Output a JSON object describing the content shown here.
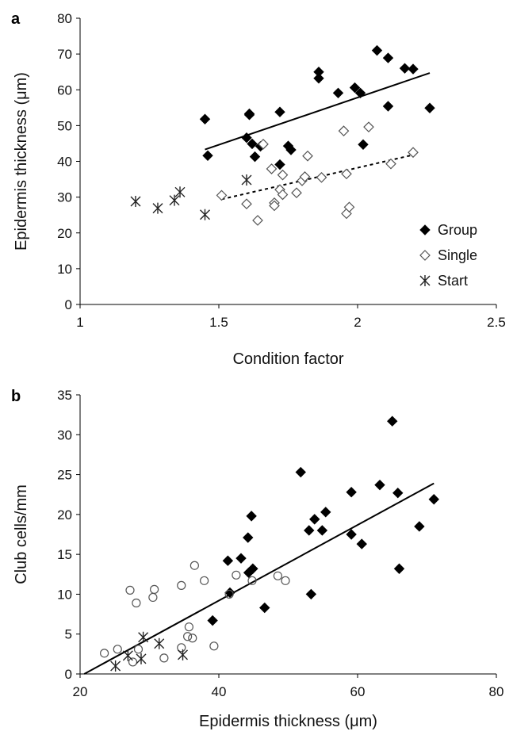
{
  "chart_data": [
    {
      "panel": "a",
      "type": "scatter",
      "title": "",
      "xlabel": "Condition factor",
      "ylabel": "Epidermis thickness (μm)",
      "xlim": [
        1,
        2.5
      ],
      "ylim": [
        0,
        80
      ],
      "xticks": [
        "1",
        "1.5",
        "2",
        "2.5"
      ],
      "yticks": [
        "0",
        "10",
        "20",
        "30",
        "40",
        "50",
        "60",
        "70",
        "80"
      ],
      "grid": false,
      "legend": "bottom-right",
      "series": [
        {
          "name": "Group",
          "marker": "diamond-filled",
          "points": [
            [
              1.45,
              51.8
            ],
            [
              1.46,
              41.6
            ],
            [
              1.6,
              46.6
            ],
            [
              1.61,
              53.3
            ],
            [
              1.61,
              53.0
            ],
            [
              1.62,
              44.9
            ],
            [
              1.63,
              41.3
            ],
            [
              1.65,
              44.2
            ],
            [
              1.72,
              53.8
            ],
            [
              1.72,
              39.1
            ],
            [
              1.75,
              44.3
            ],
            [
              1.76,
              43.2
            ],
            [
              1.86,
              65.0
            ],
            [
              1.86,
              63.2
            ],
            [
              1.93,
              59.1
            ],
            [
              1.99,
              60.6
            ],
            [
              2.01,
              59.1
            ],
            [
              2.02,
              44.7
            ],
            [
              2.07,
              71.0
            ],
            [
              2.11,
              68.9
            ],
            [
              2.11,
              55.4
            ],
            [
              2.17,
              66.0
            ],
            [
              2.2,
              65.8
            ],
            [
              2.26,
              54.9
            ]
          ]
        },
        {
          "name": "Single",
          "marker": "diamond-open",
          "points": [
            [
              1.51,
              30.5
            ],
            [
              1.6,
              28.1
            ],
            [
              1.64,
              23.5
            ],
            [
              1.66,
              44.8
            ],
            [
              1.69,
              37.9
            ],
            [
              1.7,
              28.4
            ],
            [
              1.7,
              27.6
            ],
            [
              1.72,
              32.1
            ],
            [
              1.73,
              36.2
            ],
            [
              1.73,
              30.7
            ],
            [
              1.78,
              31.2
            ],
            [
              1.8,
              34.6
            ],
            [
              1.81,
              35.7
            ],
            [
              1.82,
              41.5
            ],
            [
              1.87,
              35.5
            ],
            [
              1.95,
              48.5
            ],
            [
              1.96,
              36.5
            ],
            [
              1.96,
              25.4
            ],
            [
              1.97,
              27.2
            ],
            [
              2.04,
              49.6
            ],
            [
              2.12,
              39.3
            ],
            [
              2.2,
              42.5
            ]
          ]
        },
        {
          "name": "Start",
          "marker": "star",
          "points": [
            [
              1.2,
              28.8
            ],
            [
              1.28,
              26.9
            ],
            [
              1.34,
              29.1
            ],
            [
              1.36,
              31.4
            ],
            [
              1.45,
              25.1
            ],
            [
              1.6,
              34.8
            ]
          ]
        }
      ],
      "trendlines": [
        {
          "series": "Group",
          "style": "solid",
          "x": [
            1.45,
            2.26
          ],
          "y": [
            43.3,
            64.7
          ]
        },
        {
          "series": "Single",
          "style": "dotted",
          "x": [
            1.51,
            2.2
          ],
          "y": [
            29.4,
            41.8
          ]
        }
      ]
    },
    {
      "panel": "b",
      "type": "scatter",
      "title": "",
      "xlabel": "Epidermis thickness (μm)",
      "ylabel": "Club cells/mm",
      "xlim": [
        20,
        80
      ],
      "ylim": [
        0,
        35
      ],
      "xticks": [
        "20",
        "40",
        "60",
        "80"
      ],
      "yticks": [
        "0",
        "5",
        "10",
        "15",
        "20",
        "25",
        "30",
        "35"
      ],
      "grid": false,
      "series": [
        {
          "name": "Group",
          "marker": "diamond-filled",
          "points": [
            [
              39.1,
              6.7
            ],
            [
              41.3,
              14.2
            ],
            [
              41.6,
              10.2
            ],
            [
              43.2,
              14.5
            ],
            [
              44.2,
              17.1
            ],
            [
              44.3,
              12.7
            ],
            [
              44.7,
              19.8
            ],
            [
              44.9,
              13.2
            ],
            [
              46.6,
              8.3
            ],
            [
              51.8,
              25.3
            ],
            [
              53.0,
              18.0
            ],
            [
              53.3,
              10.0
            ],
            [
              53.8,
              19.4
            ],
            [
              54.9,
              18.0
            ],
            [
              55.4,
              20.3
            ],
            [
              59.1,
              22.8
            ],
            [
              59.1,
              17.5
            ],
            [
              60.6,
              16.3
            ],
            [
              63.2,
              23.7
            ],
            [
              65.0,
              31.7
            ],
            [
              65.8,
              22.7
            ],
            [
              66.0,
              13.2
            ],
            [
              68.9,
              18.5
            ],
            [
              71.0,
              21.9
            ]
          ]
        },
        {
          "name": "Single",
          "marker": "circle-open",
          "points": [
            [
              23.5,
              2.6
            ],
            [
              25.4,
              3.1
            ],
            [
              27.2,
              10.5
            ],
            [
              27.6,
              1.5
            ],
            [
              28.1,
              8.9
            ],
            [
              28.4,
              3.1
            ],
            [
              30.5,
              9.6
            ],
            [
              30.7,
              10.6
            ],
            [
              32.1,
              2.0
            ],
            [
              34.6,
              11.1
            ],
            [
              34.6,
              3.3
            ],
            [
              35.5,
              4.7
            ],
            [
              35.7,
              5.9
            ],
            [
              36.2,
              4.5
            ],
            [
              36.5,
              13.6
            ],
            [
              37.9,
              11.7
            ],
            [
              39.3,
              3.5
            ],
            [
              41.5,
              10.0
            ],
            [
              42.5,
              12.4
            ],
            [
              44.8,
              11.7
            ],
            [
              48.5,
              12.3
            ],
            [
              49.6,
              11.7
            ]
          ]
        },
        {
          "name": "Start",
          "marker": "star",
          "points": [
            [
              25.1,
              1.0
            ],
            [
              26.9,
              2.3
            ],
            [
              28.8,
              1.9
            ],
            [
              29.1,
              4.6
            ],
            [
              31.4,
              3.8
            ],
            [
              34.8,
              2.4
            ]
          ]
        }
      ],
      "trendlines": [
        {
          "style": "solid",
          "x": [
            20.6,
            71.0
          ],
          "y": [
            0,
            23.9
          ]
        }
      ]
    }
  ]
}
